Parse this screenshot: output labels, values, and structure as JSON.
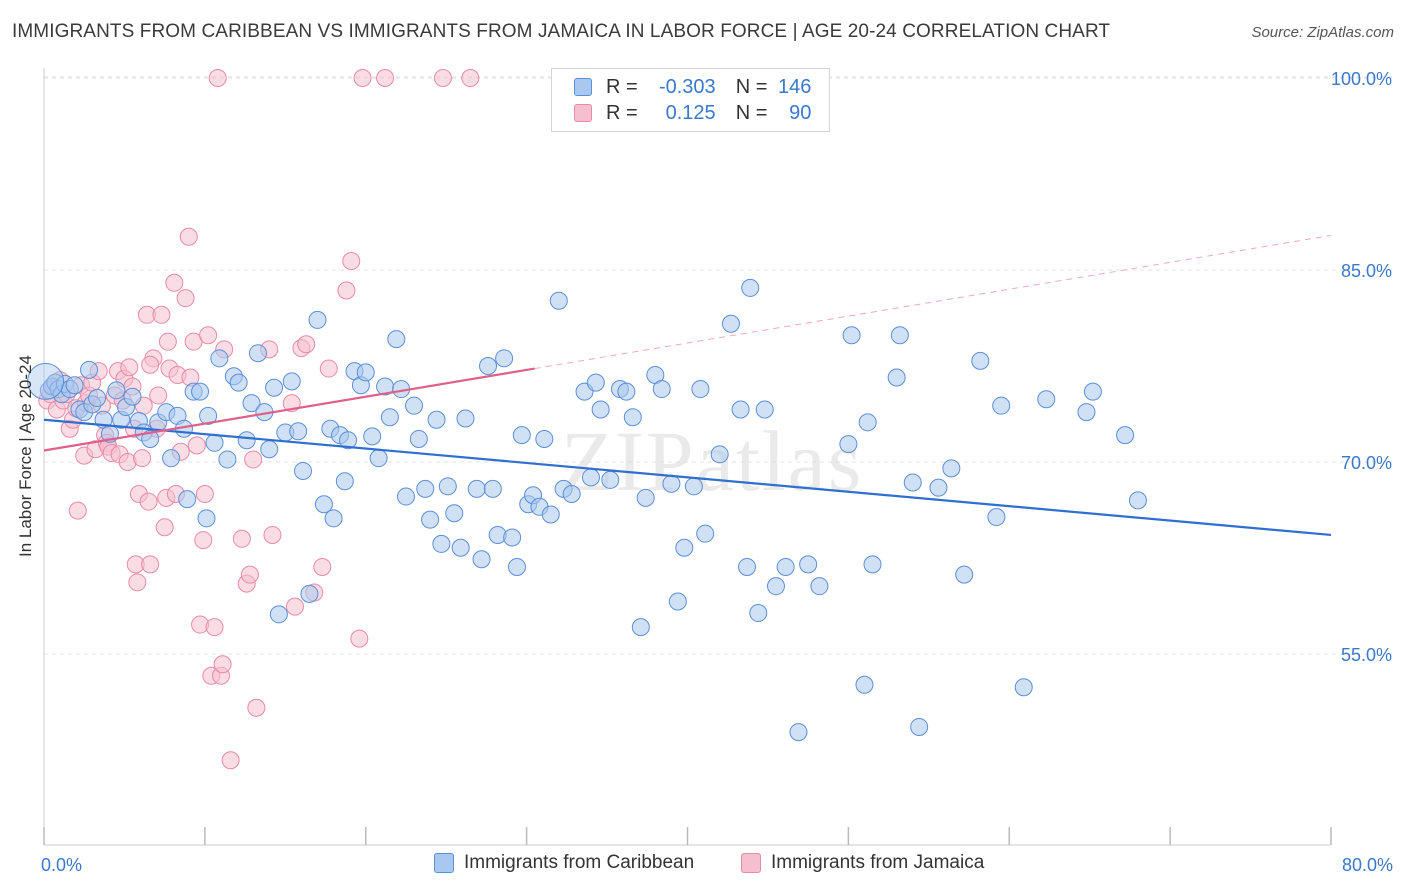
{
  "title": "IMMIGRANTS FROM CARIBBEAN VS IMMIGRANTS FROM JAMAICA IN LABOR FORCE | AGE 20-24 CORRELATION CHART",
  "source": "Source: ZipAtlas.com",
  "watermark": "ZIPatlas",
  "legend": {
    "rows": [
      {
        "r_label": "R =",
        "r_value": "-0.303",
        "n_label": "N =",
        "n_value": "146"
      },
      {
        "r_label": "R =",
        "r_value": "0.125",
        "n_label": "N =",
        "n_value": "90"
      }
    ]
  },
  "colors": {
    "caribbean_fill": "#a9c8ef",
    "caribbean_stroke": "#5b8fd8",
    "caribbean_line": "#2f6fcf",
    "jamaica_fill": "#f6bfd0",
    "jamaica_stroke": "#e98aa8",
    "jamaica_line": "#e0608a",
    "tick_label": "#3a78cc",
    "grid": "#e3e3e3"
  },
  "chart_data": {
    "type": "scatter",
    "title": "IMMIGRANTS FROM CARIBBEAN VS IMMIGRANTS FROM JAMAICA IN LABOR FORCE | AGE 20-24 CORRELATION CHART",
    "xlabel": "",
    "ylabel": "In Labor Force | Age 20-24",
    "xlim": [
      0,
      80
    ],
    "ylim": [
      40,
      102
    ],
    "x_tick_labels": [
      "0.0%",
      "80.0%"
    ],
    "y_ticks": [
      55,
      70,
      85,
      100
    ],
    "y_tick_labels": [
      "55.0%",
      "70.0%",
      "85.0%",
      "100.0%"
    ],
    "grid": true,
    "legend_position": "top-center",
    "series": [
      {
        "name": "Immigrants from Caribbean",
        "r": -0.303,
        "n": 146,
        "trend": {
          "x": [
            0,
            80
          ],
          "y": [
            73.3,
            64.3
          ]
        },
        "points": [
          [
            0.3,
            75.6
          ],
          [
            0.5,
            75.9
          ],
          [
            0.7,
            76.2
          ],
          [
            0.9,
            75.7
          ],
          [
            1.1,
            75.3
          ],
          [
            1.3,
            76.1
          ],
          [
            1.6,
            75.7
          ],
          [
            1.9,
            76.0
          ],
          [
            2.2,
            74.1
          ],
          [
            2.5,
            73.9
          ],
          [
            2.8,
            77.2
          ],
          [
            3.0,
            74.5
          ],
          [
            3.3,
            75.0
          ],
          [
            3.7,
            73.3
          ],
          [
            4.1,
            72.2
          ],
          [
            4.5,
            75.6
          ],
          [
            4.8,
            73.3
          ],
          [
            5.1,
            74.3
          ],
          [
            5.5,
            75.1
          ],
          [
            5.9,
            73.2
          ],
          [
            6.2,
            72.3
          ],
          [
            6.6,
            71.8
          ],
          [
            7.1,
            73.1
          ],
          [
            7.6,
            73.9
          ],
          [
            7.9,
            70.3
          ],
          [
            8.3,
            73.6
          ],
          [
            8.7,
            72.6
          ],
          [
            8.9,
            67.1
          ],
          [
            9.3,
            75.5
          ],
          [
            9.7,
            75.5
          ],
          [
            10.1,
            65.6
          ],
          [
            10.2,
            73.6
          ],
          [
            10.6,
            71.5
          ],
          [
            10.9,
            78.1
          ],
          [
            11.4,
            70.2
          ],
          [
            11.8,
            76.7
          ],
          [
            12.1,
            76.2
          ],
          [
            12.6,
            71.7
          ],
          [
            12.9,
            74.6
          ],
          [
            13.3,
            78.5
          ],
          [
            13.7,
            73.9
          ],
          [
            14.0,
            71.0
          ],
          [
            14.3,
            75.8
          ],
          [
            14.6,
            58.1
          ],
          [
            15.0,
            72.3
          ],
          [
            15.4,
            76.3
          ],
          [
            15.8,
            72.4
          ],
          [
            16.1,
            69.3
          ],
          [
            16.5,
            59.7
          ],
          [
            17.0,
            81.1
          ],
          [
            17.4,
            66.7
          ],
          [
            17.8,
            72.6
          ],
          [
            18.0,
            65.6
          ],
          [
            18.4,
            72.1
          ],
          [
            18.7,
            68.5
          ],
          [
            18.9,
            71.7
          ],
          [
            19.3,
            77.1
          ],
          [
            19.7,
            76.0
          ],
          [
            20.0,
            77.0
          ],
          [
            20.4,
            72.0
          ],
          [
            20.8,
            70.3
          ],
          [
            21.2,
            75.9
          ],
          [
            21.5,
            73.5
          ],
          [
            21.9,
            79.6
          ],
          [
            22.2,
            75.7
          ],
          [
            22.5,
            67.3
          ],
          [
            23.0,
            74.4
          ],
          [
            23.3,
            71.8
          ],
          [
            23.7,
            67.9
          ],
          [
            24.0,
            65.5
          ],
          [
            24.4,
            73.3
          ],
          [
            24.7,
            63.6
          ],
          [
            25.1,
            68.1
          ],
          [
            25.5,
            66.0
          ],
          [
            25.9,
            63.3
          ],
          [
            26.2,
            73.4
          ],
          [
            26.9,
            67.9
          ],
          [
            27.2,
            62.4
          ],
          [
            27.6,
            77.5
          ],
          [
            27.9,
            67.9
          ],
          [
            28.2,
            64.3
          ],
          [
            28.6,
            78.1
          ],
          [
            29.1,
            64.1
          ],
          [
            29.4,
            61.8
          ],
          [
            29.7,
            72.1
          ],
          [
            30.1,
            66.7
          ],
          [
            30.4,
            67.4
          ],
          [
            30.8,
            66.5
          ],
          [
            31.1,
            71.8
          ],
          [
            31.5,
            65.9
          ],
          [
            32.0,
            82.6
          ],
          [
            32.3,
            67.9
          ],
          [
            32.8,
            67.5
          ],
          [
            33.6,
            75.5
          ],
          [
            34.0,
            68.8
          ],
          [
            34.3,
            76.2
          ],
          [
            34.6,
            74.1
          ],
          [
            35.2,
            68.6
          ],
          [
            35.8,
            75.7
          ],
          [
            36.2,
            75.5
          ],
          [
            36.6,
            73.5
          ],
          [
            37.1,
            57.1
          ],
          [
            37.4,
            67.2
          ],
          [
            38.0,
            76.8
          ],
          [
            38.4,
            75.7
          ],
          [
            39.0,
            68.3
          ],
          [
            39.4,
            59.1
          ],
          [
            39.8,
            63.3
          ],
          [
            40.4,
            68.1
          ],
          [
            40.8,
            75.7
          ],
          [
            41.1,
            64.4
          ],
          [
            42.0,
            70.6
          ],
          [
            42.7,
            80.8
          ],
          [
            43.3,
            74.1
          ],
          [
            43.7,
            61.8
          ],
          [
            43.9,
            83.6
          ],
          [
            44.4,
            58.2
          ],
          [
            44.8,
            74.1
          ],
          [
            45.5,
            60.3
          ],
          [
            46.1,
            61.8
          ],
          [
            46.9,
            48.9
          ],
          [
            47.5,
            62.0
          ],
          [
            48.2,
            60.3
          ],
          [
            50.0,
            71.4
          ],
          [
            50.2,
            79.9
          ],
          [
            51.0,
            52.6
          ],
          [
            51.2,
            73.1
          ],
          [
            51.5,
            62.0
          ],
          [
            53.0,
            76.6
          ],
          [
            53.2,
            79.9
          ],
          [
            54.0,
            68.4
          ],
          [
            54.4,
            49.3
          ],
          [
            55.6,
            68.0
          ],
          [
            56.4,
            69.5
          ],
          [
            57.2,
            61.2
          ],
          [
            58.2,
            77.9
          ],
          [
            59.2,
            65.7
          ],
          [
            59.5,
            74.4
          ],
          [
            60.9,
            52.4
          ],
          [
            62.3,
            74.9
          ],
          [
            64.8,
            73.9
          ],
          [
            65.2,
            75.5
          ],
          [
            67.2,
            72.1
          ],
          [
            68.0,
            67.0
          ]
        ]
      },
      {
        "name": "Immigrants from Jamaica",
        "r": 0.125,
        "n": 90,
        "trend_solid": {
          "x": [
            0,
            30.5
          ],
          "y": [
            70.9,
            77.3
          ]
        },
        "trend_dashed": {
          "x": [
            30.5,
            80
          ],
          "y": [
            77.3,
            87.7
          ]
        },
        "points": [
          [
            0.2,
            74.8
          ],
          [
            0.4,
            75.3
          ],
          [
            0.6,
            75.9
          ],
          [
            0.8,
            74.1
          ],
          [
            1.0,
            76.4
          ],
          [
            1.2,
            74.8
          ],
          [
            1.4,
            75.3
          ],
          [
            1.6,
            72.6
          ],
          [
            1.8,
            73.3
          ],
          [
            2.0,
            74.2
          ],
          [
            2.1,
            66.2
          ],
          [
            2.3,
            76.0
          ],
          [
            2.5,
            70.5
          ],
          [
            2.6,
            74.6
          ],
          [
            2.8,
            75.2
          ],
          [
            3.0,
            76.2
          ],
          [
            3.2,
            71.0
          ],
          [
            3.4,
            77.1
          ],
          [
            3.6,
            74.4
          ],
          [
            3.8,
            72.1
          ],
          [
            3.9,
            71.5
          ],
          [
            4.0,
            71.2
          ],
          [
            4.2,
            70.7
          ],
          [
            4.4,
            75.2
          ],
          [
            4.6,
            77.1
          ],
          [
            4.7,
            70.6
          ],
          [
            4.9,
            74.8
          ],
          [
            5.0,
            76.5
          ],
          [
            5.2,
            70.0
          ],
          [
            5.3,
            77.4
          ],
          [
            5.5,
            75.9
          ],
          [
            5.6,
            72.6
          ],
          [
            5.7,
            62.0
          ],
          [
            5.8,
            60.6
          ],
          [
            5.9,
            67.5
          ],
          [
            6.1,
            70.3
          ],
          [
            6.2,
            74.4
          ],
          [
            6.4,
            81.5
          ],
          [
            6.5,
            66.9
          ],
          [
            6.6,
            62.0
          ],
          [
            6.8,
            78.1
          ],
          [
            7.0,
            72.6
          ],
          [
            7.1,
            75.2
          ],
          [
            7.3,
            81.5
          ],
          [
            7.5,
            64.9
          ],
          [
            7.6,
            67.2
          ],
          [
            7.7,
            79.4
          ],
          [
            7.8,
            77.3
          ],
          [
            8.1,
            84.0
          ],
          [
            8.2,
            67.5
          ],
          [
            8.3,
            76.8
          ],
          [
            8.5,
            70.8
          ],
          [
            8.8,
            82.8
          ],
          [
            9.0,
            87.6
          ],
          [
            9.1,
            76.6
          ],
          [
            9.3,
            79.4
          ],
          [
            9.5,
            71.3
          ],
          [
            9.7,
            57.3
          ],
          [
            9.9,
            63.9
          ],
          [
            10.0,
            67.5
          ],
          [
            10.2,
            79.9
          ],
          [
            10.4,
            53.3
          ],
          [
            10.6,
            57.1
          ],
          [
            10.8,
            100.0
          ],
          [
            11.0,
            53.3
          ],
          [
            11.1,
            54.2
          ],
          [
            11.2,
            78.8
          ],
          [
            11.6,
            46.7
          ],
          [
            12.3,
            64.0
          ],
          [
            12.6,
            60.5
          ],
          [
            12.8,
            61.2
          ],
          [
            13.0,
            70.2
          ],
          [
            13.2,
            50.8
          ],
          [
            14.0,
            78.8
          ],
          [
            14.2,
            64.3
          ],
          [
            15.4,
            74.6
          ],
          [
            15.6,
            58.7
          ],
          [
            16.0,
            78.9
          ],
          [
            16.3,
            79.2
          ],
          [
            16.8,
            59.8
          ],
          [
            17.3,
            61.8
          ],
          [
            17.7,
            77.3
          ],
          [
            18.8,
            83.4
          ],
          [
            19.1,
            85.7
          ],
          [
            19.6,
            56.2
          ],
          [
            19.8,
            100.0
          ],
          [
            21.2,
            100.0
          ],
          [
            24.8,
            100.0
          ],
          [
            26.5,
            100.0
          ],
          [
            6.6,
            77.6
          ]
        ]
      }
    ]
  }
}
